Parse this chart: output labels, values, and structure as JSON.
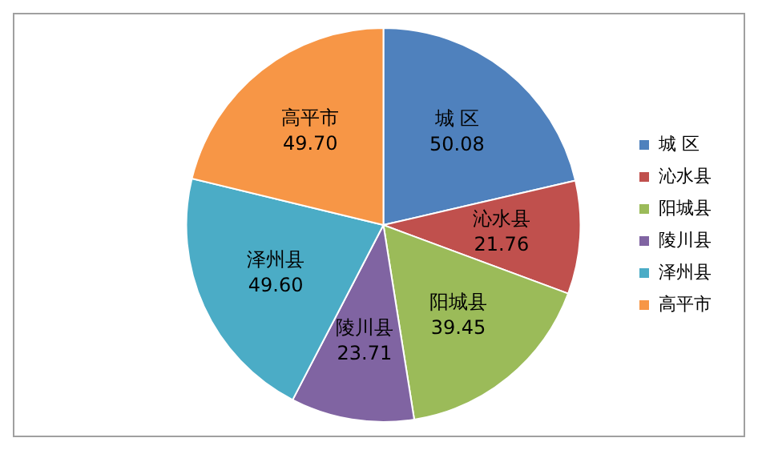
{
  "chart_data": {
    "type": "pie",
    "categories": [
      "城 区",
      "沁水县",
      "阳城县",
      "陵川县",
      "泽州县",
      "高平市"
    ],
    "values": [
      50.08,
      21.76,
      39.45,
      23.71,
      49.6,
      49.7
    ],
    "colors": [
      "#4f81bd",
      "#c0504d",
      "#9bbb59",
      "#8064a2",
      "#4bacc6",
      "#f79646"
    ],
    "value_labels": [
      "50.08",
      "21.76",
      "39.45",
      "23.71",
      "49.60",
      "49.70"
    ],
    "legend": "right"
  }
}
